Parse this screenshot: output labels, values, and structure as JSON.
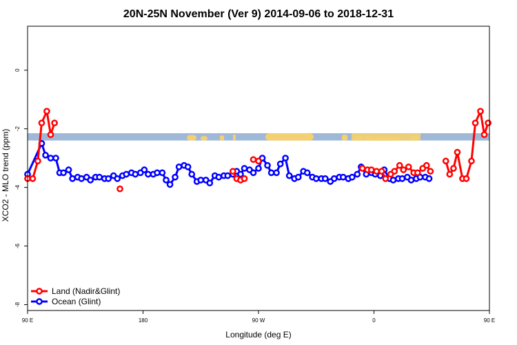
{
  "chart_data": {
    "type": "line",
    "title": "20N-25N November (Ver 9)   2014-09-06 to 2018-12-31",
    "xlabel": "Longitude (deg E)",
    "ylabel": "XCO2 - MLO trend (ppm)",
    "xlim": [
      90,
      450
    ],
    "ylim": [
      -8.2,
      1.5
    ],
    "x_ticks": [
      {
        "value": 90,
        "label": "90 E"
      },
      {
        "value": 180,
        "label": "180"
      },
      {
        "value": 270,
        "label": "90 W"
      },
      {
        "value": 360,
        "label": "0"
      },
      {
        "value": 450,
        "label": "90 E"
      },
      {
        "value": 540,
        "label": "180"
      }
    ],
    "y_ticks": [
      {
        "value": 0,
        "label": "0"
      },
      {
        "value": -2,
        "label": "-2"
      },
      {
        "value": -4,
        "label": "-4"
      },
      {
        "value": -6,
        "label": "-6"
      },
      {
        "value": -8,
        "label": "-8"
      }
    ],
    "legend_position": "bottom-left",
    "grid": false,
    "land_band": {
      "y_min": -2.4,
      "y_max": -2.15,
      "ocean_color": "#a0b8d8",
      "land_color": "#f4d070"
    },
    "series": [
      {
        "name": "Land (Nadir&Glint)",
        "color": "#ff0000",
        "segments": [
          [
            [
              90,
              -3.7
            ],
            [
              94,
              -3.7
            ],
            [
              98,
              -3.1
            ],
            [
              101,
              -1.8
            ],
            [
              105,
              -1.4
            ],
            [
              108,
              -2.2
            ],
            [
              111,
              -1.8
            ]
          ],
          [
            [
              162,
              -4.05
            ]
          ],
          [
            [
              250,
              -3.45
            ],
            [
              253,
              -3.7
            ],
            [
              256,
              -3.75
            ],
            [
              259,
              -3.7
            ]
          ],
          [
            [
              266,
              -3.05
            ],
            [
              270,
              -3.1
            ]
          ],
          [
            [
              351,
              -3.35
            ],
            [
              355,
              -3.4
            ],
            [
              358,
              -3.4
            ],
            [
              362,
              -3.45
            ],
            [
              366,
              -3.45
            ],
            [
              369,
              -3.7
            ],
            [
              373,
              -3.55
            ],
            [
              376,
              -3.45
            ],
            [
              380,
              -3.25
            ],
            [
              383,
              -3.4
            ],
            [
              387,
              -3.3
            ],
            [
              391,
              -3.5
            ],
            [
              394,
              -3.5
            ],
            [
              398,
              -3.35
            ],
            [
              401,
              -3.25
            ],
            [
              404,
              -3.45
            ]
          ],
          [
            [
              416,
              -3.1
            ],
            [
              419,
              -3.55
            ],
            [
              422,
              -3.35
            ],
            [
              425,
              -2.8
            ],
            [
              429,
              -3.7
            ],
            [
              432,
              -3.7
            ],
            [
              436,
              -3.1
            ],
            [
              439,
              -1.8
            ],
            [
              443,
              -1.4
            ],
            [
              446,
              -2.2
            ],
            [
              449,
              -1.8
            ]
          ]
        ]
      },
      {
        "name": "Ocean (Glint)",
        "color": "#0000ff",
        "segments": [
          [
            [
              90,
              -3.55
            ],
            [
              101,
              -2.5
            ],
            [
              104,
              -2.9
            ],
            [
              108,
              -3.0
            ],
            [
              112,
              -3.0
            ],
            [
              115,
              -3.5
            ],
            [
              118,
              -3.5
            ],
            [
              122,
              -3.4
            ],
            [
              125,
              -3.7
            ],
            [
              129,
              -3.65
            ],
            [
              132,
              -3.7
            ],
            [
              136,
              -3.65
            ],
            [
              139,
              -3.75
            ],
            [
              143,
              -3.65
            ],
            [
              146,
              -3.65
            ],
            [
              150,
              -3.7
            ],
            [
              153,
              -3.7
            ],
            [
              157,
              -3.6
            ],
            [
              160,
              -3.7
            ],
            [
              164,
              -3.6
            ],
            [
              167,
              -3.55
            ],
            [
              171,
              -3.5
            ],
            [
              174,
              -3.55
            ],
            [
              178,
              -3.5
            ],
            [
              181,
              -3.4
            ],
            [
              184,
              -3.55
            ],
            [
              188,
              -3.55
            ],
            [
              191,
              -3.5
            ],
            [
              195,
              -3.5
            ],
            [
              198,
              -3.75
            ],
            [
              201,
              -3.9
            ],
            [
              205,
              -3.65
            ],
            [
              208,
              -3.3
            ],
            [
              212,
              -3.25
            ],
            [
              215,
              -3.3
            ],
            [
              218,
              -3.55
            ],
            [
              222,
              -3.8
            ],
            [
              225,
              -3.75
            ],
            [
              229,
              -3.75
            ],
            [
              232,
              -3.85
            ],
            [
              236,
              -3.6
            ],
            [
              239,
              -3.65
            ],
            [
              243,
              -3.6
            ],
            [
              246,
              -3.6
            ],
            [
              250,
              -3.55
            ],
            [
              253,
              -3.45
            ],
            [
              256,
              -3.55
            ],
            [
              259,
              -3.35
            ],
            [
              263,
              -3.4
            ],
            [
              266,
              -3.5
            ],
            [
              270,
              -3.35
            ],
            [
              273,
              -3.0
            ],
            [
              277,
              -3.25
            ],
            [
              280,
              -3.5
            ],
            [
              284,
              -3.5
            ],
            [
              287,
              -3.2
            ],
            [
              291,
              -3.0
            ],
            [
              294,
              -3.6
            ],
            [
              298,
              -3.7
            ],
            [
              301,
              -3.65
            ],
            [
              305,
              -3.45
            ],
            [
              308,
              -3.5
            ],
            [
              312,
              -3.65
            ],
            [
              315,
              -3.7
            ],
            [
              319,
              -3.7
            ],
            [
              322,
              -3.7
            ],
            [
              326,
              -3.8
            ],
            [
              329,
              -3.7
            ],
            [
              333,
              -3.65
            ],
            [
              336,
              -3.65
            ],
            [
              340,
              -3.7
            ]
          ],
          [
            [
              340,
              -3.7
            ],
            [
              343,
              -3.65
            ],
            [
              347,
              -3.55
            ],
            [
              350,
              -3.3
            ],
            [
              354,
              -3.55
            ],
            [
              358,
              -3.5
            ],
            [
              361,
              -3.55
            ],
            [
              365,
              -3.6
            ],
            [
              368,
              -3.4
            ],
            [
              372,
              -3.7
            ],
            [
              375,
              -3.75
            ],
            [
              379,
              -3.7
            ],
            [
              382,
              -3.7
            ],
            [
              386,
              -3.65
            ],
            [
              389,
              -3.75
            ],
            [
              393,
              -3.7
            ],
            [
              396,
              -3.65
            ],
            [
              400,
              -3.65
            ],
            [
              403,
              -3.7
            ]
          ]
        ]
      }
    ]
  }
}
